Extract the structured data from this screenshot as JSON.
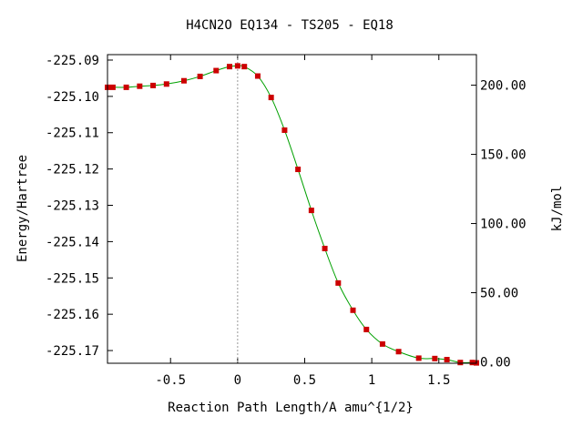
{
  "chart_data": {
    "type": "line",
    "title": "H4CN2O   EQ134 - TS205 - EQ18",
    "xlabel": "Reaction Path Length/A amu^{1/2}",
    "ylabel": "Energy/Hartree",
    "y2label": "kJ/mol",
    "xlim": [
      -0.97,
      1.78
    ],
    "ylim": [
      -225.1735,
      -225.0885
    ],
    "y2lim": [
      -1.0,
      222.1
    ],
    "x_ticks": [
      -0.5,
      0,
      0.5,
      1,
      1.5
    ],
    "x_tick_labels": [
      "-0.5",
      "0",
      "0.5",
      "1",
      "1.5"
    ],
    "y_ticks": [
      -225.09,
      -225.1,
      -225.11,
      -225.12,
      -225.13,
      -225.14,
      -225.15,
      -225.16,
      -225.17
    ],
    "y_tick_labels": [
      "-225.09",
      "-225.10",
      "-225.11",
      "-225.12",
      "-225.13",
      "-225.14",
      "-225.15",
      "-225.16",
      "-225.17"
    ],
    "y2_ticks": [
      0,
      50,
      100,
      150,
      200
    ],
    "y2_tick_labels": [
      "0.00",
      "50.00",
      "100.00",
      "150.00",
      "200.00"
    ],
    "ts_marker_x": 0,
    "grid": false,
    "colors": {
      "line": "#00a000",
      "points": "#cc0000",
      "ts_line": "#999999",
      "frame": "#000000"
    },
    "series": [
      {
        "points_x": [
          -0.97,
          -0.93,
          -0.83,
          -0.73,
          -0.63,
          -0.53,
          -0.4,
          -0.28,
          -0.16,
          -0.06,
          0.0,
          0.05,
          0.15,
          0.25,
          0.35,
          0.45,
          0.55,
          0.65,
          0.75,
          0.86,
          0.96,
          1.08,
          1.2,
          1.35,
          1.47,
          1.56,
          1.66,
          1.75,
          1.78
        ],
        "points_y": [
          -225.0975,
          -225.0975,
          -225.0975,
          -225.0972,
          -225.097,
          -225.0966,
          -225.0957,
          -225.0945,
          -225.0929,
          -225.0918,
          -225.0916,
          -225.0918,
          -225.0944,
          -225.1003,
          -225.1093,
          -225.1201,
          -225.1314,
          -225.1419,
          -225.1514,
          -225.1589,
          -225.1642,
          -225.1682,
          -225.1703,
          -225.1721,
          -225.1722,
          -225.1725,
          -225.1733,
          -225.1733,
          -225.1734
        ]
      }
    ]
  }
}
